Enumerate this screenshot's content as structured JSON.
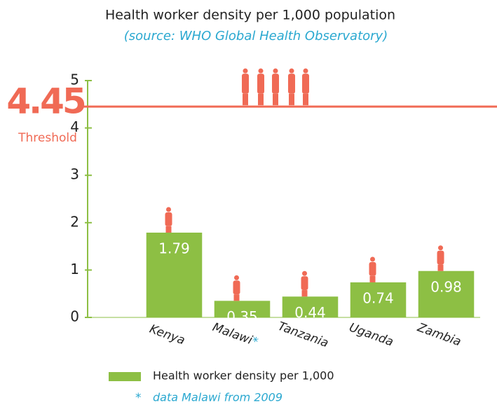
{
  "chart_data": {
    "type": "bar",
    "title": "Health worker density per 1,000 population",
    "subtitle": "(source: WHO Global Health Observatory)",
    "categories": [
      "Kenya",
      "Malawi",
      "Tanzania",
      "Uganda",
      "Zambia"
    ],
    "series": [
      {
        "name": "Health worker density per 1,000",
        "color": "#8dbf44",
        "values": [
          1.79,
          0.35,
          0.44,
          0.74,
          0.98
        ]
      }
    ],
    "ylim": [
      0,
      5
    ],
    "yticks": [
      0,
      1,
      2,
      3,
      4,
      5
    ],
    "threshold": {
      "value": 4.45,
      "label": "Threshold",
      "color": "#f06a55"
    },
    "footnote": {
      "marker": "*",
      "text": "data Malawi from 2009"
    }
  }
}
